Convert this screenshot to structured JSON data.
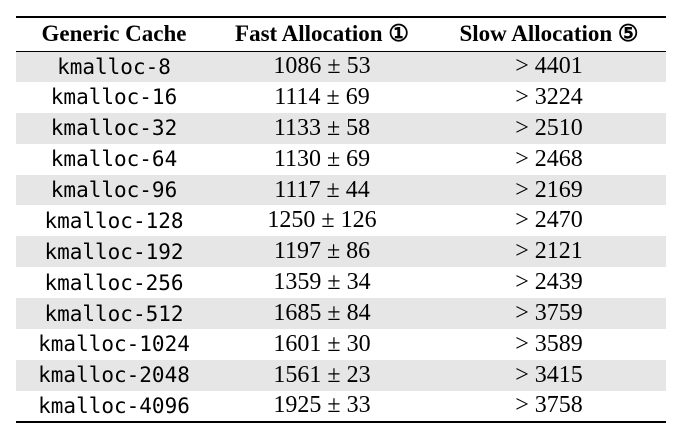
{
  "table": {
    "headers": [
      "Generic Cache",
      "Fast Allocation ①",
      "Slow Allocation ⑤"
    ],
    "rows": [
      {
        "cache": "kmalloc-8",
        "fast": "1086 ± 53",
        "slow": "> 4401"
      },
      {
        "cache": "kmalloc-16",
        "fast": "1114 ± 69",
        "slow": "> 3224"
      },
      {
        "cache": "kmalloc-32",
        "fast": "1133 ± 58",
        "slow": "> 2510"
      },
      {
        "cache": "kmalloc-64",
        "fast": "1130 ± 69",
        "slow": "> 2468"
      },
      {
        "cache": "kmalloc-96",
        "fast": "1117 ± 44",
        "slow": "> 2169"
      },
      {
        "cache": "kmalloc-128",
        "fast": "1250 ± 126",
        "slow": "> 2470"
      },
      {
        "cache": "kmalloc-192",
        "fast": "1197 ± 86",
        "slow": "> 2121"
      },
      {
        "cache": "kmalloc-256",
        "fast": "1359 ± 34",
        "slow": "> 2439"
      },
      {
        "cache": "kmalloc-512",
        "fast": "1685 ± 84",
        "slow": "> 3759"
      },
      {
        "cache": "kmalloc-1024",
        "fast": "1601 ± 30",
        "slow": "> 3589"
      },
      {
        "cache": "kmalloc-2048",
        "fast": "1561 ± 23",
        "slow": "> 3415"
      },
      {
        "cache": "kmalloc-4096",
        "fast": "1925 ± 33",
        "slow": "> 3758"
      }
    ],
    "stripe_color": "#e6e6e6",
    "rule_color": "#000000"
  }
}
